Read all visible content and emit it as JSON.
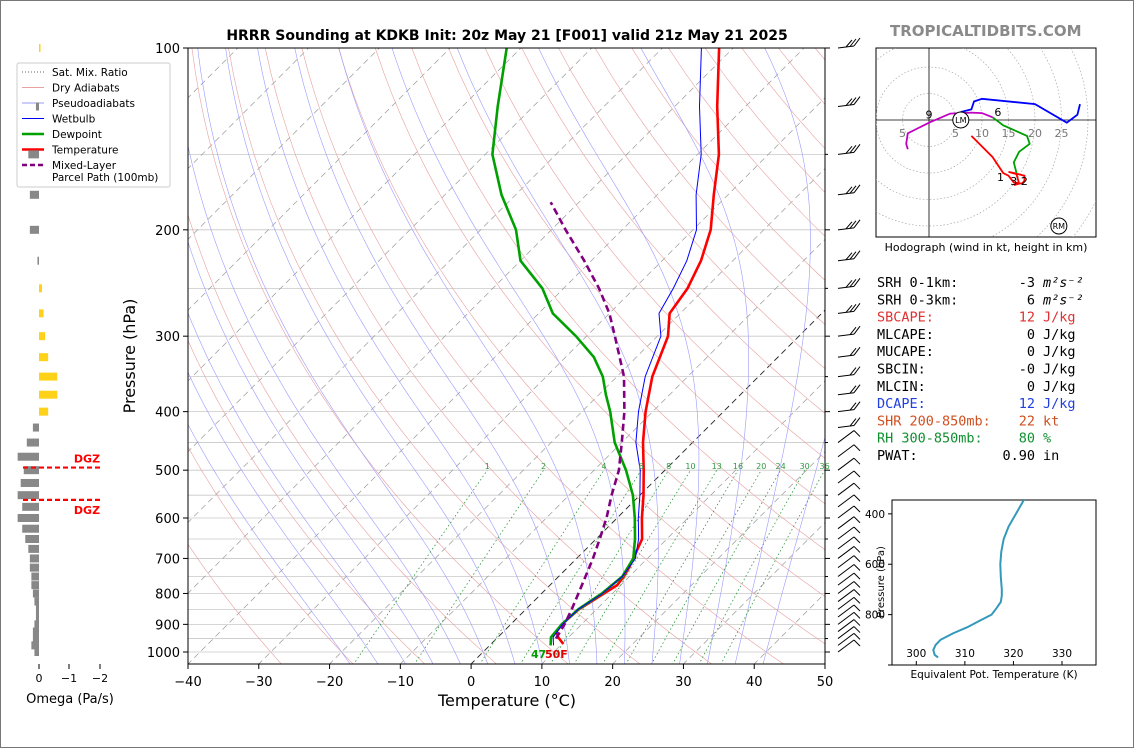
{
  "title": "HRRR Sounding at KDKB Init: 20z May 21 [F001] valid 21z May 21 2025",
  "watermark": "TROPICALTIDBITS.COM",
  "axes": {
    "xlabel": "Temperature (°C)",
    "ylabel": "Pressure (hPa)",
    "x_ticks": [
      "−40",
      "−30",
      "−20",
      "−10",
      "0",
      "10",
      "20",
      "30",
      "40",
      "50"
    ],
    "y_ticks": [
      "100",
      "200",
      "300",
      "400",
      "500",
      "600",
      "700",
      "800",
      "900",
      "1000"
    ]
  },
  "legend": [
    {
      "label": "Sat. Mix. Ratio",
      "color": "#666666",
      "style": "dotted"
    },
    {
      "label": "Dry Adiabats",
      "color": "#e8a0a0",
      "style": "solid"
    },
    {
      "label": "Pseudoadiabats",
      "color": "#9a9aff",
      "style": "solid"
    },
    {
      "label": "Wetbulb",
      "color": "#0000ff",
      "style": "solid"
    },
    {
      "label": "Dewpoint",
      "color": "#00a000",
      "style": "thick"
    },
    {
      "label": "Temperature",
      "color": "#ff0000",
      "style": "thick"
    },
    {
      "label": "Mixed-Layer\nParcel Path (100mb)",
      "color": "#800080",
      "style": "dashed"
    }
  ],
  "mixing_ratio_labels": [
    "1",
    "2",
    "4",
    "6",
    "8",
    "10",
    "13",
    "16",
    "20",
    "24",
    "30",
    "36"
  ],
  "surface_labels": {
    "dewpoint": "47",
    "temperature": "50F"
  },
  "omega": {
    "xlabel": "Omega (Pa/s)",
    "ticks": [
      "0",
      "−1",
      "−2"
    ],
    "dgz_label": "DGZ"
  },
  "hodograph": {
    "caption": "Hodograph (wind in kt, height in km)",
    "ring_labels": [
      "5",
      "5",
      "10",
      "15",
      "20",
      "25"
    ],
    "height_labels": [
      "9",
      "6",
      "1",
      "3",
      "2"
    ],
    "lm": "LM",
    "rm": "RM"
  },
  "theta_e": {
    "xlabel": "Equivalent Pot. Temperature (K)",
    "ylabel": "Pressure (hPa)",
    "x_ticks": [
      "300",
      "310",
      "320",
      "330"
    ],
    "y_ticks": [
      "400",
      "600",
      "800"
    ]
  },
  "indices": [
    {
      "label": "SRH 0-1km:",
      "value": "-3",
      "unit": "m²s⁻²",
      "color": "#000000"
    },
    {
      "label": "SRH 0-3km:",
      "value": "6",
      "unit": "m²s⁻²",
      "color": "#000000"
    },
    {
      "label": "SBCAPE:",
      "value": "12",
      "unit": "J/kg",
      "color": "#e03030"
    },
    {
      "label": "MLCAPE:",
      "value": "0",
      "unit": "J/kg",
      "color": "#000000"
    },
    {
      "label": "MUCAPE:",
      "value": "0",
      "unit": "J/kg",
      "color": "#000000"
    },
    {
      "label": "SBCIN:",
      "value": "-0",
      "unit": "J/kg",
      "color": "#000000"
    },
    {
      "label": "MLCIN:",
      "value": "0",
      "unit": "J/kg",
      "color": "#000000"
    },
    {
      "label": "DCAPE:",
      "value": "12",
      "unit": "J/kg",
      "color": "#2040e0"
    },
    {
      "label": "SHR 200-850mb:",
      "value": "22",
      "unit": "kt",
      "color": "#d05020"
    },
    {
      "label": "RH 300-850mb:",
      "value": "80",
      "unit": "%",
      "color": "#109030"
    },
    {
      "label": "PWAT:",
      "value": "0.90",
      "unit": "in",
      "color": "#000000"
    }
  ],
  "chart_data": {
    "type": "line",
    "title": "HRRR Sounding at KDKB Init: 20z May 21 [F001] valid 21z May 21 2025",
    "xlabel": "Temperature (°C)",
    "ylabel": "Pressure (hPa)",
    "xlim": [
      -40,
      50
    ],
    "ylim": [
      1050,
      100
    ],
    "yscale": "log",
    "skew_deg": 45,
    "series": [
      {
        "name": "Temperature",
        "color": "#ff0000",
        "points": [
          [
            10.2,
            970
          ],
          [
            8.5,
            945
          ],
          [
            7.5,
            925
          ],
          [
            7.2,
            900
          ],
          [
            7.5,
            850
          ],
          [
            8.8,
            800
          ],
          [
            9.5,
            775
          ],
          [
            9.2,
            750
          ],
          [
            8.7,
            725
          ],
          [
            8.0,
            700
          ],
          [
            6.5,
            650
          ],
          [
            3.5,
            600
          ],
          [
            0.5,
            550
          ],
          [
            -3,
            500
          ],
          [
            -7,
            450
          ],
          [
            -11,
            400
          ],
          [
            -15,
            350
          ],
          [
            -18.5,
            300
          ],
          [
            -21.5,
            275
          ],
          [
            -22.5,
            250
          ],
          [
            -24.5,
            225
          ],
          [
            -27.5,
            200
          ],
          [
            -32,
            175
          ],
          [
            -37,
            150
          ],
          [
            -44,
            125
          ],
          [
            -52,
            100
          ]
        ]
      },
      {
        "name": "Dewpoint",
        "color": "#00a000",
        "points": [
          [
            8.6,
            975
          ],
          [
            7.5,
            945
          ],
          [
            7.2,
            900
          ],
          [
            7.4,
            850
          ],
          [
            8.5,
            800
          ],
          [
            9,
            750
          ],
          [
            8,
            700
          ],
          [
            5.5,
            650
          ],
          [
            2.5,
            600
          ],
          [
            -1,
            550
          ],
          [
            -5.5,
            500
          ],
          [
            -11,
            450
          ],
          [
            -16,
            400
          ],
          [
            -19,
            375
          ],
          [
            -22,
            350
          ],
          [
            -26,
            325
          ],
          [
            -31.5,
            300
          ],
          [
            -38,
            275
          ],
          [
            -43,
            250
          ],
          [
            -50,
            225
          ],
          [
            -55,
            200
          ],
          [
            -62,
            175
          ],
          [
            -69,
            150
          ],
          [
            -75,
            125
          ],
          [
            -82,
            100
          ]
        ]
      },
      {
        "name": "Wetbulb",
        "color": "#0000ff",
        "points": [
          [
            9.0,
            975
          ],
          [
            7.8,
            945
          ],
          [
            7.3,
            900
          ],
          [
            7.4,
            850
          ],
          [
            8.6,
            800
          ],
          [
            9,
            750
          ],
          [
            8.3,
            700
          ],
          [
            6,
            650
          ],
          [
            3,
            600
          ],
          [
            0,
            550
          ],
          [
            -3.5,
            500
          ],
          [
            -8,
            450
          ],
          [
            -12,
            400
          ],
          [
            -16,
            350
          ],
          [
            -19.5,
            300
          ],
          [
            -23,
            275
          ],
          [
            -24.5,
            250
          ],
          [
            -26.5,
            225
          ],
          [
            -29.5,
            200
          ],
          [
            -34.5,
            175
          ],
          [
            -39.5,
            150
          ],
          [
            -46.5,
            125
          ],
          [
            -54.5,
            100
          ]
        ]
      },
      {
        "name": "Mixed-Layer Parcel Path (100mb)",
        "color": "#800080",
        "points": [
          [
            8.4,
            950
          ],
          [
            7.6,
            900
          ],
          [
            6.5,
            850
          ],
          [
            5.2,
            800
          ],
          [
            3.8,
            750
          ],
          [
            2.3,
            700
          ],
          [
            0.5,
            650
          ],
          [
            -1.5,
            600
          ],
          [
            -4,
            550
          ],
          [
            -6.5,
            500
          ],
          [
            -10,
            450
          ],
          [
            -14,
            400
          ],
          [
            -19,
            350
          ],
          [
            -26,
            300
          ],
          [
            -30,
            275
          ],
          [
            -35,
            250
          ],
          [
            -41,
            225
          ],
          [
            -48,
            200
          ],
          [
            -54,
            180
          ]
        ]
      }
    ],
    "omega": {
      "pressures": [
        1000,
        975,
        950,
        925,
        900,
        875,
        850,
        825,
        800,
        775,
        750,
        725,
        700,
        675,
        650,
        625,
        600,
        575,
        550,
        525,
        500,
        475,
        450,
        425,
        400,
        375,
        350,
        325,
        300,
        275,
        250,
        225,
        200,
        175,
        150,
        125,
        100
      ],
      "values": [
        -0.15,
        -0.25,
        -0.2,
        -0.2,
        -0.15,
        -0.1,
        -0.1,
        -0.15,
        -0.2,
        -0.25,
        -0.25,
        -0.3,
        -0.3,
        -0.35,
        -0.45,
        -0.55,
        -0.7,
        -0.55,
        -0.7,
        -0.6,
        -0.5,
        -0.7,
        -0.4,
        -0.2,
        0.3,
        0.6,
        0.6,
        0.3,
        0.2,
        0.15,
        0.1,
        -0.05,
        -0.3,
        -0.3,
        -0.35,
        -0.1,
        0.05
      ],
      "dgz": [
        495,
        560
      ]
    },
    "theta_e": {
      "pressures": [
        970,
        960,
        940,
        920,
        900,
        875,
        850,
        825,
        800,
        775,
        750,
        725,
        700,
        650,
        600,
        550,
        500,
        450,
        400,
        350,
        320
      ],
      "values": [
        304.5,
        303.8,
        303.5,
        304,
        305,
        307.5,
        310.5,
        313,
        315.5,
        316.5,
        317.4,
        317.6,
        317.6,
        317.4,
        317.3,
        317.5,
        318,
        319,
        320.5,
        322,
        323
      ]
    },
    "hodograph_kt": [
      [
        -4,
        -5
      ],
      [
        -4.5,
        -3
      ],
      [
        -2,
        -1
      ],
      [
        0,
        0.5
      ],
      [
        2,
        1
      ],
      [
        4,
        1
      ],
      [
        6,
        1.5
      ],
      [
        8,
        1.4
      ],
      [
        10,
        1.2
      ],
      [
        12,
        1
      ],
      [
        14,
        -1
      ],
      [
        18,
        -3
      ],
      [
        17,
        -5
      ],
      [
        16,
        -8
      ],
      [
        16,
        -11
      ],
      [
        14,
        -10
      ],
      [
        12,
        -9
      ],
      [
        15,
        -10.5
      ],
      [
        16,
        -12
      ],
      [
        14,
        -12
      ],
      [
        8,
        -3
      ],
      [
        12,
        -3
      ],
      [
        16,
        -7
      ],
      [
        20,
        -10
      ],
      [
        20,
        -12
      ],
      [
        16,
        -11
      ]
    ],
    "hodograph_upper_kt": [
      [
        6,
        1.5
      ],
      [
        8,
        2
      ],
      [
        8.5,
        3.5
      ],
      [
        10,
        4
      ],
      [
        20,
        3
      ],
      [
        26,
        -0.5
      ],
      [
        28,
        1
      ],
      [
        28.5,
        3
      ]
    ],
    "hodograph_storm_motion_kt": {
      "LM": [
        6,
        0
      ],
      "RM": [
        24.5,
        -20
      ]
    }
  }
}
